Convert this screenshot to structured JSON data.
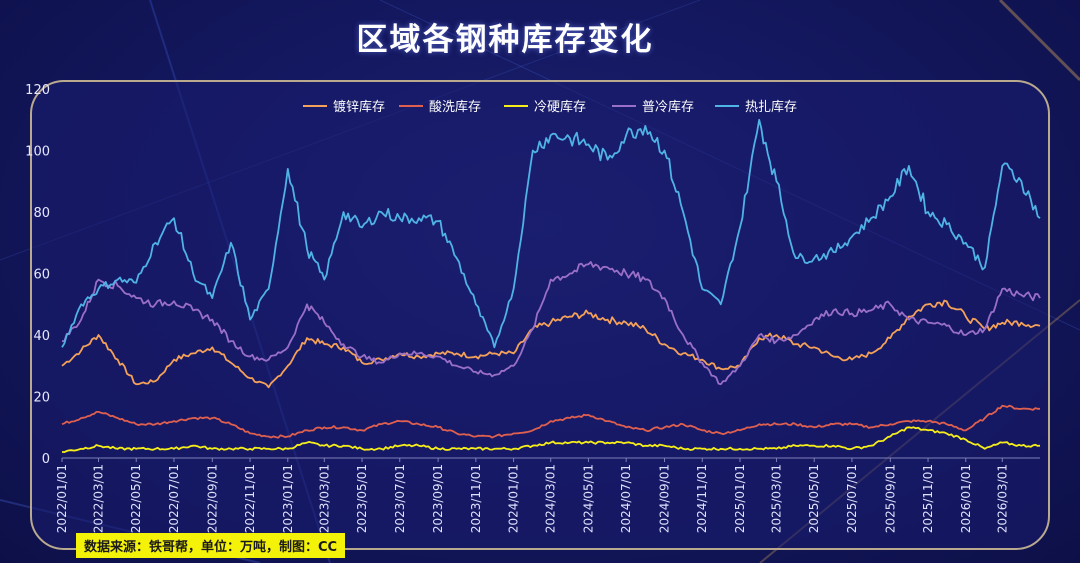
{
  "title": "区域各钢种库存变化",
  "source_note": "数据来源：铁哥帮，单位：万吨，制图：CC",
  "chart_data": {
    "type": "line",
    "title": "区域各钢种库存变化",
    "xlabel": "",
    "ylabel": "",
    "ylim": [
      0,
      120
    ],
    "yticks": [
      0,
      20,
      40,
      60,
      80,
      100,
      120
    ],
    "xrange": [
      "2022/01/01",
      "2026/05/01"
    ],
    "xticks": [
      "2022/01/01",
      "2022/03/01",
      "2022/05/01",
      "2022/07/01",
      "2022/09/01",
      "2022/11/01",
      "2023/01/01",
      "2023/03/01",
      "2023/05/01",
      "2023/07/01",
      "2023/09/01",
      "2023/11/01",
      "2024/01/01",
      "2024/03/01",
      "2024/05/01",
      "2024/07/01",
      "2024/09/01",
      "2024/11/01",
      "2025/01/01",
      "2025/03/01",
      "2025/05/01",
      "2025/07/01",
      "2025/09/01",
      "2025/11/01",
      "2026/01/01",
      "2026/03/01"
    ],
    "legend_position": "top-center",
    "series": [
      {
        "name": "镀锌库存",
        "color": "#f4a15a",
        "x": [
          "2022/01/01",
          "2022/02/01",
          "2022/03/01",
          "2022/04/01",
          "2022/05/01",
          "2022/06/01",
          "2022/07/01",
          "2022/08/01",
          "2022/09/01",
          "2022/10/01",
          "2022/11/01",
          "2022/12/01",
          "2023/01/01",
          "2023/02/01",
          "2023/03/01",
          "2023/04/01",
          "2023/05/01",
          "2023/06/01",
          "2023/07/01",
          "2023/08/01",
          "2023/09/01",
          "2023/10/01",
          "2023/11/01",
          "2023/12/01",
          "2024/01/01",
          "2024/02/01",
          "2024/03/01",
          "2024/04/01",
          "2024/05/01",
          "2024/06/01",
          "2024/07/01",
          "2024/08/01",
          "2024/09/01",
          "2024/10/01",
          "2024/11/01",
          "2024/12/01",
          "2025/01/01",
          "2025/02/01",
          "2025/03/01",
          "2025/04/01",
          "2025/05/01",
          "2025/06/01",
          "2025/07/01",
          "2025/08/01",
          "2025/09/01",
          "2025/10/01",
          "2025/11/01",
          "2025/12/01",
          "2026/01/01",
          "2026/02/01",
          "2026/03/01",
          "2026/04/01",
          "2026/05/01"
        ],
        "values": [
          30,
          35,
          40,
          32,
          24,
          25,
          32,
          34,
          36,
          31,
          26,
          23,
          30,
          39,
          37,
          36,
          31,
          32,
          34,
          33,
          34,
          34,
          33,
          34,
          34,
          42,
          44,
          46,
          47,
          45,
          44,
          42,
          37,
          34,
          32,
          29,
          30,
          39,
          40,
          37,
          36,
          33,
          32,
          34,
          39,
          46,
          50,
          51,
          46,
          42,
          44,
          44,
          43
        ]
      },
      {
        "name": "酸洗库存",
        "color": "#e0604f",
        "x": [
          "2022/01/01",
          "2022/02/01",
          "2022/03/01",
          "2022/04/01",
          "2022/05/01",
          "2022/06/01",
          "2022/07/01",
          "2022/08/01",
          "2022/09/01",
          "2022/10/01",
          "2022/11/01",
          "2022/12/01",
          "2023/01/01",
          "2023/02/01",
          "2023/03/01",
          "2023/04/01",
          "2023/05/01",
          "2023/06/01",
          "2023/07/01",
          "2023/08/01",
          "2023/09/01",
          "2023/10/01",
          "2023/11/01",
          "2023/12/01",
          "2024/01/01",
          "2024/02/01",
          "2024/03/01",
          "2024/04/01",
          "2024/05/01",
          "2024/06/01",
          "2024/07/01",
          "2024/08/01",
          "2024/09/01",
          "2024/10/01",
          "2024/11/01",
          "2024/12/01",
          "2025/01/01",
          "2025/02/01",
          "2025/03/01",
          "2025/04/01",
          "2025/05/01",
          "2025/06/01",
          "2025/07/01",
          "2025/08/01",
          "2025/09/01",
          "2025/10/01",
          "2025/11/01",
          "2025/12/01",
          "2026/01/01",
          "2026/02/01",
          "2026/03/01",
          "2026/04/01",
          "2026/05/01"
        ],
        "values": [
          11,
          13,
          15,
          13,
          11,
          11,
          12,
          13,
          13,
          11,
          8,
          7,
          7,
          9,
          10,
          10,
          9,
          11,
          12,
          11,
          10,
          8,
          7,
          7,
          8,
          9,
          12,
          13,
          14,
          12,
          10,
          9,
          10,
          11,
          9,
          8,
          9,
          11,
          11,
          11,
          10,
          11,
          11,
          10,
          11,
          12,
          12,
          11,
          9,
          13,
          17,
          16,
          16
        ]
      },
      {
        "name": "冷硬库存",
        "color": "#f6ee1a",
        "x": [
          "2022/01/01",
          "2022/02/01",
          "2022/03/01",
          "2022/04/01",
          "2022/05/01",
          "2022/06/01",
          "2022/07/01",
          "2022/08/01",
          "2022/09/01",
          "2022/10/01",
          "2022/11/01",
          "2022/12/01",
          "2023/01/01",
          "2023/02/01",
          "2023/03/01",
          "2023/04/01",
          "2023/05/01",
          "2023/06/01",
          "2023/07/01",
          "2023/08/01",
          "2023/09/01",
          "2023/10/01",
          "2023/11/01",
          "2023/12/01",
          "2024/01/01",
          "2024/02/01",
          "2024/03/01",
          "2024/04/01",
          "2024/05/01",
          "2024/06/01",
          "2024/07/01",
          "2024/08/01",
          "2024/09/01",
          "2024/10/01",
          "2024/11/01",
          "2024/12/01",
          "2025/01/01",
          "2025/02/01",
          "2025/03/01",
          "2025/04/01",
          "2025/05/01",
          "2025/06/01",
          "2025/07/01",
          "2025/08/01",
          "2025/09/01",
          "2025/10/01",
          "2025/11/01",
          "2025/12/01",
          "2026/01/01",
          "2026/02/01",
          "2026/03/01",
          "2026/04/01",
          "2026/05/01"
        ],
        "values": [
          2,
          3,
          4,
          3,
          3,
          3,
          3,
          4,
          3,
          3,
          3,
          3,
          3,
          5,
          4,
          4,
          3,
          3,
          4,
          4,
          3,
          3,
          3,
          3,
          3,
          4,
          5,
          5,
          5,
          5,
          5,
          4,
          4,
          3,
          3,
          3,
          3,
          3,
          3,
          4,
          4,
          4,
          3,
          4,
          7,
          10,
          9,
          8,
          6,
          3,
          5,
          4,
          4
        ]
      },
      {
        "name": "普冷库存",
        "color": "#9a6fc8",
        "x": [
          "2022/01/01",
          "2022/02/01",
          "2022/03/01",
          "2022/04/01",
          "2022/05/01",
          "2022/06/01",
          "2022/07/01",
          "2022/08/01",
          "2022/09/01",
          "2022/10/01",
          "2022/11/01",
          "2022/12/01",
          "2023/01/01",
          "2023/02/01",
          "2023/03/01",
          "2023/04/01",
          "2023/05/01",
          "2023/06/01",
          "2023/07/01",
          "2023/08/01",
          "2023/09/01",
          "2023/10/01",
          "2023/11/01",
          "2023/12/01",
          "2024/01/01",
          "2024/02/01",
          "2024/03/01",
          "2024/04/01",
          "2024/05/01",
          "2024/06/01",
          "2024/07/01",
          "2024/08/01",
          "2024/09/01",
          "2024/10/01",
          "2024/11/01",
          "2024/12/01",
          "2025/01/01",
          "2025/02/01",
          "2025/03/01",
          "2025/04/01",
          "2025/05/01",
          "2025/06/01",
          "2025/07/01",
          "2025/08/01",
          "2025/09/01",
          "2025/10/01",
          "2025/11/01",
          "2025/12/01",
          "2026/01/01",
          "2026/02/01",
          "2026/03/01",
          "2026/04/01",
          "2026/05/01"
        ],
        "values": [
          38,
          45,
          58,
          56,
          52,
          50,
          51,
          48,
          45,
          38,
          33,
          32,
          36,
          50,
          44,
          37,
          33,
          31,
          34,
          34,
          33,
          30,
          28,
          27,
          30,
          42,
          58,
          60,
          63,
          62,
          60,
          58,
          52,
          40,
          31,
          24,
          30,
          40,
          38,
          40,
          45,
          48,
          47,
          48,
          50,
          45,
          44,
          43,
          40,
          42,
          55,
          53,
          52
        ]
      },
      {
        "name": "热扎库存",
        "color": "#4fb3e6",
        "x": [
          "2022/01/01",
          "2022/02/01",
          "2022/03/01",
          "2022/04/01",
          "2022/05/01",
          "2022/06/01",
          "2022/07/01",
          "2022/08/01",
          "2022/09/01",
          "2022/10/01",
          "2022/11/01",
          "2022/12/01",
          "2023/01/01",
          "2023/02/01",
          "2023/03/01",
          "2023/04/01",
          "2023/05/01",
          "2023/06/01",
          "2023/07/01",
          "2023/08/01",
          "2023/09/01",
          "2023/10/01",
          "2023/11/01",
          "2023/12/01",
          "2024/01/01",
          "2024/02/01",
          "2024/03/01",
          "2024/04/01",
          "2024/05/01",
          "2024/06/01",
          "2024/07/01",
          "2024/08/01",
          "2024/09/01",
          "2024/10/01",
          "2024/11/01",
          "2024/12/01",
          "2025/01/01",
          "2025/02/01",
          "2025/03/01",
          "2025/04/01",
          "2025/05/01",
          "2025/06/01",
          "2025/07/01",
          "2025/08/01",
          "2025/09/01",
          "2025/10/01",
          "2025/11/01",
          "2025/12/01",
          "2026/01/01",
          "2026/02/01",
          "2026/03/01",
          "2026/04/01",
          "2026/05/01"
        ],
        "values": [
          36,
          50,
          55,
          58,
          57,
          70,
          78,
          60,
          52,
          70,
          45,
          55,
          94,
          68,
          58,
          80,
          75,
          80,
          78,
          78,
          77,
          65,
          50,
          36,
          55,
          100,
          105,
          104,
          102,
          97,
          105,
          108,
          100,
          80,
          55,
          50,
          75,
          110,
          90,
          65,
          65,
          67,
          72,
          78,
          85,
          95,
          80,
          76,
          70,
          62,
          95,
          90,
          78
        ]
      }
    ]
  }
}
